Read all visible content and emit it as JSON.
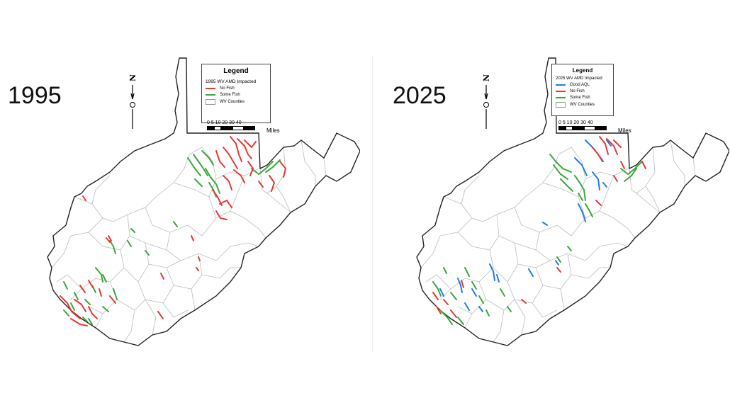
{
  "panels": [
    {
      "year": "1995",
      "legend": {
        "title": "Legend",
        "subtitle": "1995 WV AMD Impacted",
        "items": [
          {
            "label": "No Fish",
            "color": "#e53935"
          },
          {
            "label": "Some Fish",
            "color": "#3aa83a"
          },
          {
            "label": "WV Counties",
            "color": "#ffffff"
          }
        ]
      },
      "scale": {
        "ticks": "0  5 10    20    30    40",
        "unit": "Miles"
      },
      "north_label": "N"
    },
    {
      "year": "2025",
      "legend": {
        "title": "Legend",
        "subtitle": "2025 WV AMD Impacted",
        "items": [
          {
            "label": "Good AQL",
            "color": "#1e7be6"
          },
          {
            "label": "No Fish",
            "color": "#e53935"
          },
          {
            "label": "Some Fish",
            "color": "#3aa83a"
          },
          {
            "label": "WV Counties",
            "color": "#ffffff"
          }
        ]
      },
      "scale": {
        "ticks": "0  5 10    20    30    40",
        "unit": "Miles"
      },
      "north_label": "N"
    }
  ],
  "colors": {
    "no_fish": "#e53935",
    "some_fish": "#3aa83a",
    "good_aql": "#1e7be6",
    "outline": "#222222",
    "county": "#bdbdbd"
  }
}
